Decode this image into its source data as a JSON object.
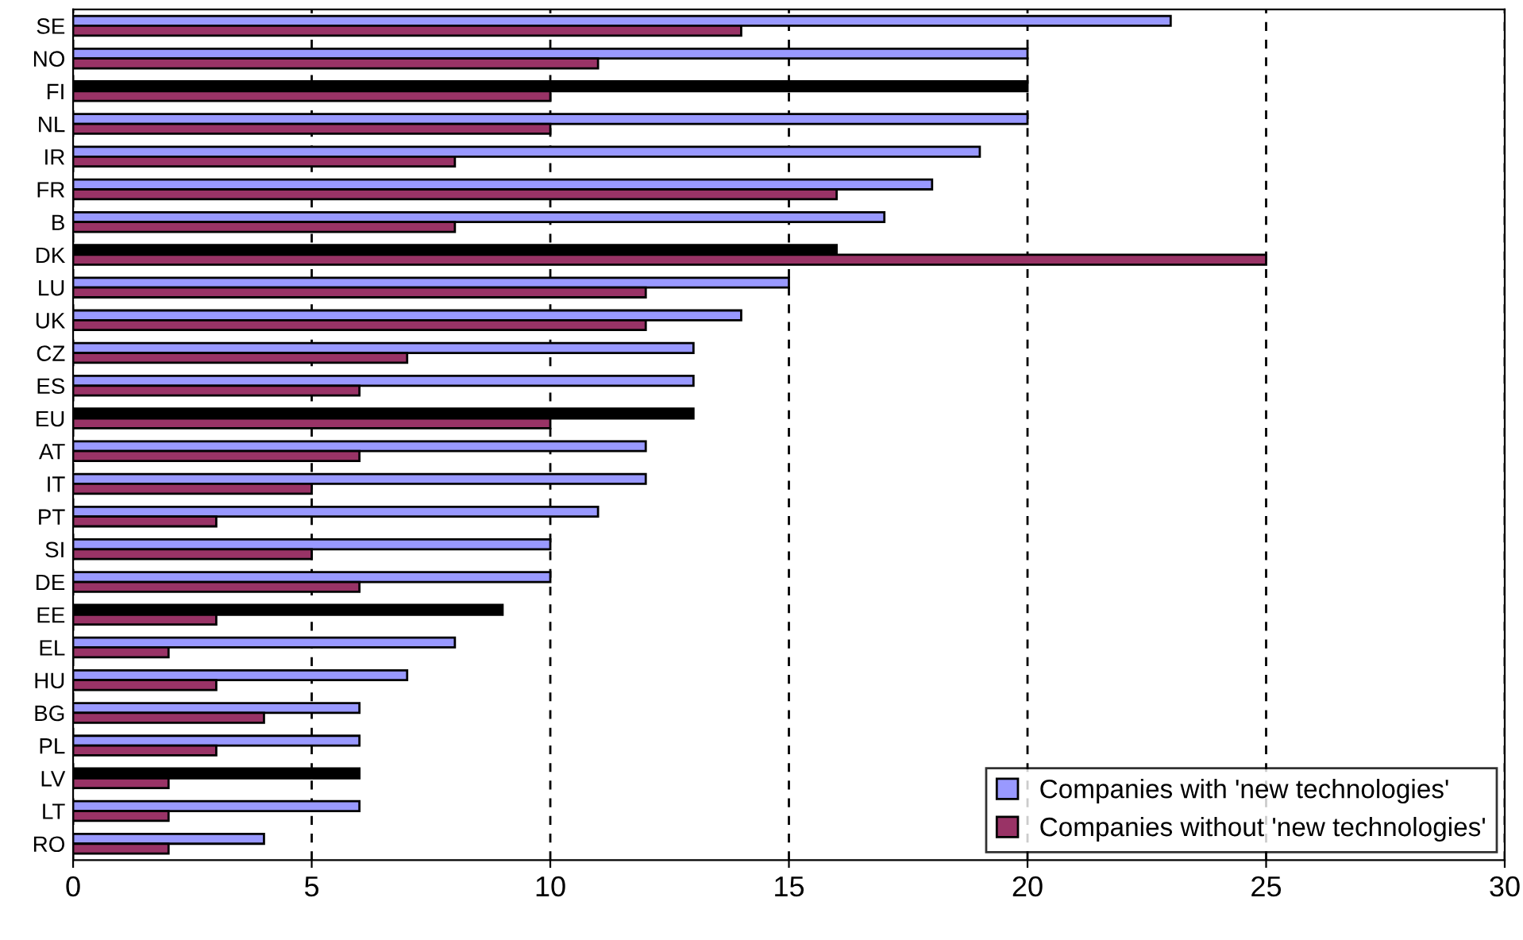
{
  "chart_data": {
    "type": "bar",
    "orientation": "horizontal",
    "categories": [
      "SE",
      "NO",
      "FI",
      "NL",
      "IR",
      "FR",
      "B",
      "DK",
      "LU",
      "UK",
      "CZ",
      "ES",
      "EU",
      "AT",
      "IT",
      "PT",
      "SI",
      "DE",
      "EE",
      "EL",
      "HU",
      "BG",
      "PL",
      "LV",
      "LT",
      "RO"
    ],
    "series": [
      {
        "name": "Companies with 'new technologies'",
        "color": "#9999ff",
        "colors": [
          "#9999ff",
          "#9999ff",
          "#000000",
          "#9999ff",
          "#9999ff",
          "#9999ff",
          "#9999ff",
          "#000000",
          "#9999ff",
          "#9999ff",
          "#9999ff",
          "#9999ff",
          "#000000",
          "#9999ff",
          "#9999ff",
          "#9999ff",
          "#9999ff",
          "#9999ff",
          "#000000",
          "#9999ff",
          "#9999ff",
          "#9999ff",
          "#9999ff",
          "#000000",
          "#9999ff",
          "#9999ff"
        ],
        "values": [
          23,
          20,
          20,
          20,
          19,
          18,
          17,
          16,
          15,
          14,
          13,
          13,
          13,
          12,
          12,
          11,
          10,
          10,
          9,
          8,
          7,
          6,
          6,
          6,
          6,
          4
        ]
      },
      {
        "name": "Companies without 'new technologies'",
        "color": "#993366",
        "values": [
          14,
          11,
          10,
          10,
          8,
          16,
          8,
          25,
          12,
          12,
          7,
          6,
          10,
          6,
          5,
          3,
          5,
          6,
          3,
          2,
          3,
          4,
          3,
          2,
          2,
          2
        ]
      }
    ],
    "xlim": [
      0,
      30
    ],
    "xticks": [
      0,
      5,
      10,
      15,
      20,
      25,
      30
    ],
    "grid": "x",
    "legend": "bottom right"
  }
}
